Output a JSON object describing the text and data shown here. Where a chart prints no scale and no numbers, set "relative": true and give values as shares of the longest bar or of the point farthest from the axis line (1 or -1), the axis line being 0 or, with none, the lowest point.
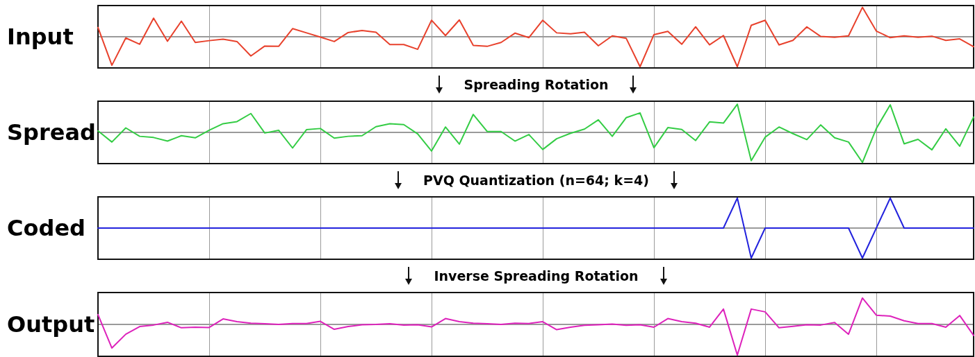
{
  "chart_data": [
    {
      "type": "line",
      "ylabel": "Input",
      "relative": true,
      "grid": "x",
      "marker": "none",
      "line_style": "solid",
      "tick_labels": false,
      "annotations": [
        "Spreading Rotation"
      ],
      "categories": [
        null,
        null,
        null,
        null,
        null,
        null,
        null,
        null,
        null,
        null,
        null,
        null,
        null,
        null,
        null,
        null,
        null,
        null,
        null,
        null,
        null,
        null,
        null,
        null,
        null,
        null,
        null,
        null,
        null,
        null,
        null,
        null,
        null,
        null,
        null,
        null,
        null,
        null,
        null,
        null,
        null,
        null,
        null,
        null,
        null,
        null,
        null,
        null,
        null,
        null,
        null,
        null,
        null,
        null,
        null,
        null,
        null,
        null,
        null,
        null,
        null,
        null,
        null,
        null
      ],
      "series": [
        {
          "color": "#e8412c",
          "values": [
            0.31,
            -0.95,
            -0.04,
            -0.25,
            0.62,
            -0.15,
            0.52,
            -0.19,
            -0.13,
            -0.08,
            -0.16,
            -0.64,
            -0.31,
            -0.32,
            0.27,
            0.13,
            -0.01,
            -0.16,
            0.14,
            0.21,
            0.15,
            -0.26,
            -0.26,
            -0.42,
            0.55,
            0.04,
            0.56,
            -0.29,
            -0.32,
            -0.19,
            0.12,
            -0.03,
            0.55,
            0.13,
            0.1,
            0.15,
            -0.3,
            0.03,
            -0.05,
            -1.0,
            0.07,
            0.18,
            -0.25,
            0.33,
            -0.27,
            0.04,
            -1.0,
            0.38,
            0.55,
            -0.27,
            -0.12,
            0.33,
            0.01,
            -0.02,
            0.03,
            0.98,
            0.19,
            -0.03,
            0.03,
            -0.02,
            0.02,
            -0.12,
            -0.07,
            -0.33
          ]
        }
      ]
    },
    {
      "type": "line",
      "ylabel": "Spread",
      "relative": true,
      "grid": "x",
      "marker": "none",
      "line_style": "solid",
      "tick_labels": false,
      "annotations": [
        "PVQ Quantization (n=64; k=4)"
      ],
      "categories": [
        null,
        null,
        null,
        null,
        null,
        null,
        null,
        null,
        null,
        null,
        null,
        null,
        null,
        null,
        null,
        null,
        null,
        null,
        null,
        null,
        null,
        null,
        null,
        null,
        null,
        null,
        null,
        null,
        null,
        null,
        null,
        null,
        null,
        null,
        null,
        null,
        null,
        null,
        null,
        null,
        null,
        null,
        null,
        null,
        null,
        null,
        null,
        null,
        null,
        null,
        null,
        null,
        null,
        null,
        null,
        null,
        null,
        null,
        null,
        null,
        null,
        null,
        null,
        null
      ],
      "series": [
        {
          "color": "#33cc44",
          "values": [
            0.05,
            -0.32,
            0.15,
            -0.13,
            -0.17,
            -0.29,
            -0.11,
            -0.18,
            0.07,
            0.29,
            0.36,
            0.63,
            -0.02,
            0.07,
            -0.52,
            0.09,
            0.13,
            -0.19,
            -0.13,
            -0.11,
            0.19,
            0.29,
            0.26,
            -0.05,
            -0.62,
            0.18,
            -0.39,
            0.6,
            0.03,
            0.03,
            -0.29,
            -0.07,
            -0.57,
            -0.21,
            -0.03,
            0.11,
            0.42,
            -0.13,
            0.49,
            0.65,
            -0.51,
            0.16,
            0.1,
            -0.27,
            0.35,
            0.31,
            0.94,
            -0.94,
            -0.16,
            0.18,
            -0.04,
            -0.24,
            0.25,
            -0.18,
            -0.32,
            -1.0,
            0.13,
            0.92,
            -0.38,
            -0.23,
            -0.58,
            0.12,
            -0.46,
            0.51
          ]
        }
      ]
    },
    {
      "type": "line",
      "ylabel": "Coded",
      "relative": true,
      "grid": "x",
      "marker": "none",
      "line_style": "solid",
      "tick_labels": false,
      "annotations": [
        "Inverse Spreading Rotation"
      ],
      "categories": [
        null,
        null,
        null,
        null,
        null,
        null,
        null,
        null,
        null,
        null,
        null,
        null,
        null,
        null,
        null,
        null,
        null,
        null,
        null,
        null,
        null,
        null,
        null,
        null,
        null,
        null,
        null,
        null,
        null,
        null,
        null,
        null,
        null,
        null,
        null,
        null,
        null,
        null,
        null,
        null,
        null,
        null,
        null,
        null,
        null,
        null,
        null,
        null,
        null,
        null,
        null,
        null,
        null,
        null,
        null,
        null,
        null,
        null,
        null,
        null,
        null,
        null,
        null,
        null
      ],
      "series": [
        {
          "color": "#2222dd",
          "values": [
            0,
            0,
            0,
            0,
            0,
            0,
            0,
            0,
            0,
            0,
            0,
            0,
            0,
            0,
            0,
            0,
            0,
            0,
            0,
            0,
            0,
            0,
            0,
            0,
            0,
            0,
            0,
            0,
            0,
            0,
            0,
            0,
            0,
            0,
            0,
            0,
            0,
            0,
            0,
            0,
            0,
            0,
            0,
            0,
            0,
            0,
            1,
            -1,
            0,
            0,
            0,
            0,
            0,
            0,
            0,
            -1,
            0,
            1,
            0,
            0,
            0,
            0,
            0,
            0
          ]
        }
      ]
    },
    {
      "type": "line",
      "ylabel": "Output",
      "relative": true,
      "grid": "x",
      "marker": "none",
      "line_style": "solid",
      "tick_labels": false,
      "categories": [
        null,
        null,
        null,
        null,
        null,
        null,
        null,
        null,
        null,
        null,
        null,
        null,
        null,
        null,
        null,
        null,
        null,
        null,
        null,
        null,
        null,
        null,
        null,
        null,
        null,
        null,
        null,
        null,
        null,
        null,
        null,
        null,
        null,
        null,
        null,
        null,
        null,
        null,
        null,
        null,
        null,
        null,
        null,
        null,
        null,
        null,
        null,
        null,
        null,
        null,
        null,
        null,
        null,
        null,
        null,
        null,
        null,
        null,
        null,
        null,
        null,
        null,
        null,
        null
      ],
      "series": [
        {
          "color": "#dd22bb",
          "values": [
            0.32,
            -0.77,
            -0.32,
            -0.07,
            -0.02,
            0.07,
            -0.11,
            -0.09,
            -0.1,
            0.18,
            0.09,
            0.04,
            0.02,
            0,
            0.03,
            0.03,
            0.1,
            -0.16,
            -0.07,
            -0.01,
            0,
            0.02,
            -0.02,
            -0.01,
            -0.08,
            0.19,
            0.09,
            0.04,
            0.02,
            0,
            0.04,
            0.03,
            0.09,
            -0.17,
            -0.09,
            -0.03,
            -0.01,
            0.01,
            -0.03,
            -0.01,
            -0.09,
            0.19,
            0.09,
            0.04,
            -0.09,
            0.5,
            -1.0,
            0.5,
            0.41,
            -0.11,
            -0.06,
            -0.01,
            -0.02,
            0.06,
            -0.32,
            0.86,
            0.3,
            0.27,
            0.12,
            0.03,
            0.03,
            -0.09,
            0.29,
            -0.36
          ]
        }
      ]
    }
  ]
}
